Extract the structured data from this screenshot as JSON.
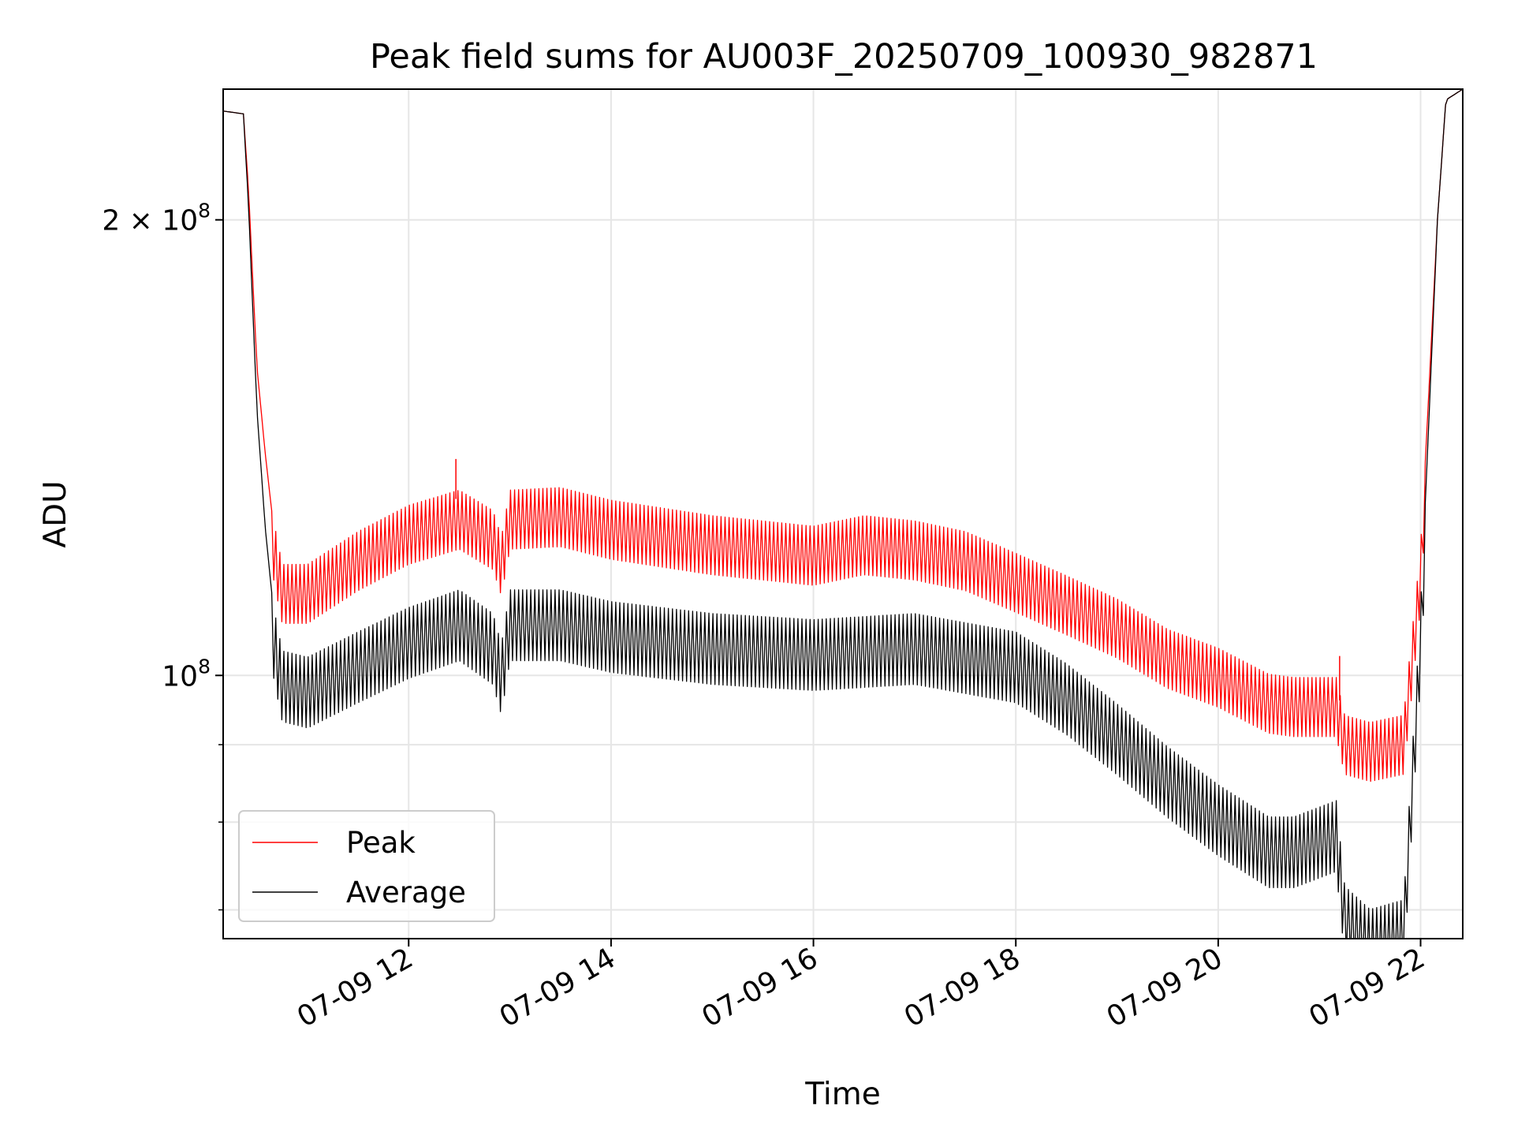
{
  "chart_data": {
    "type": "line",
    "title": "Peak field sums for AU003F_20250709_100930_982871",
    "xlabel": "Time",
    "ylabel": "ADU",
    "x_axis": {
      "type": "datetime",
      "range": [
        "2025-07-09 10:10",
        "2025-07-09 22:25"
      ],
      "ticks": [
        {
          "value": "2025-07-09 12:00",
          "label": "07-09 12"
        },
        {
          "value": "2025-07-09 14:00",
          "label": "07-09 14"
        },
        {
          "value": "2025-07-09 16:00",
          "label": "07-09 16"
        },
        {
          "value": "2025-07-09 18:00",
          "label": "07-09 18"
        },
        {
          "value": "2025-07-09 20:00",
          "label": "07-09 20"
        },
        {
          "value": "2025-07-09 22:00",
          "label": "07-09 22"
        }
      ]
    },
    "y_axis": {
      "scale": "log",
      "range": [
        67000000,
        244000000
      ],
      "major_ticks": [
        {
          "value": 100000000,
          "label_base": "10",
          "label_exp": "8"
        },
        {
          "value": 200000000,
          "label_base": "2 × 10",
          "label_exp": "8"
        }
      ],
      "minor_ticks": [
        70000000,
        80000000,
        90000000
      ]
    },
    "grid": true,
    "legend": {
      "position": "lower-left"
    },
    "series": [
      {
        "name": "Peak",
        "color": "#ff0000",
        "oscillating": true,
        "points": [
          [
            "2025-07-09 10:10",
            236000000
          ],
          [
            "2025-07-09 10:22",
            235000000
          ],
          [
            "2025-07-09 10:25",
            210000000
          ],
          [
            "2025-07-09 10:30",
            160000000
          ],
          [
            "2025-07-09 10:35",
            140000000
          ],
          [
            "2025-07-09 10:40",
            125000000
          ],
          [
            "2025-07-09 10:45",
            117000000
          ],
          [
            "2025-07-09 11:00",
            117000000
          ],
          [
            "2025-07-09 11:30",
            123000000
          ],
          [
            "2025-07-09 12:00",
            128000000
          ],
          [
            "2025-07-09 12:30",
            131000000
          ],
          [
            "2025-07-09 12:50",
            127000000
          ],
          [
            "2025-07-09 12:55",
            122000000
          ],
          [
            "2025-07-09 13:00",
            131000000
          ],
          [
            "2025-07-09 13:30",
            131500000
          ],
          [
            "2025-07-09 14:00",
            129000000
          ],
          [
            "2025-07-09 15:00",
            126000000
          ],
          [
            "2025-07-09 16:00",
            124000000
          ],
          [
            "2025-07-09 16:30",
            126000000
          ],
          [
            "2025-07-09 17:00",
            125000000
          ],
          [
            "2025-07-09 17:30",
            123000000
          ],
          [
            "2025-07-09 18:00",
            119000000
          ],
          [
            "2025-07-09 18:30",
            115000000
          ],
          [
            "2025-07-09 19:00",
            111000000
          ],
          [
            "2025-07-09 19:30",
            106000000
          ],
          [
            "2025-07-09 20:00",
            103000000
          ],
          [
            "2025-07-09 20:30",
            99000000
          ],
          [
            "2025-07-09 20:45",
            98500000
          ],
          [
            "2025-07-09 21:10",
            98500000
          ],
          [
            "2025-07-09 21:15",
            93000000
          ],
          [
            "2025-07-09 21:30",
            92000000
          ],
          [
            "2025-07-09 21:50",
            93000000
          ],
          [
            "2025-07-09 22:00",
            120000000
          ],
          [
            "2025-07-09 22:10",
            200000000
          ],
          [
            "2025-07-09 22:15",
            240000000
          ],
          [
            "2025-07-09 22:25",
            244000000
          ]
        ]
      },
      {
        "name": "Average",
        "color": "#000000",
        "oscillating": true,
        "points": [
          [
            "2025-07-09 10:10",
            236000000
          ],
          [
            "2025-07-09 10:22",
            235000000
          ],
          [
            "2025-07-09 10:25",
            205000000
          ],
          [
            "2025-07-09 10:30",
            150000000
          ],
          [
            "2025-07-09 10:35",
            125000000
          ],
          [
            "2025-07-09 10:40",
            110000000
          ],
          [
            "2025-07-09 10:45",
            103000000
          ],
          [
            "2025-07-09 11:00",
            102000000
          ],
          [
            "2025-07-09 11:30",
            106000000
          ],
          [
            "2025-07-09 12:00",
            110000000
          ],
          [
            "2025-07-09 12:30",
            113000000
          ],
          [
            "2025-07-09 12:50",
            109000000
          ],
          [
            "2025-07-09 12:55",
            104000000
          ],
          [
            "2025-07-09 13:00",
            113000000
          ],
          [
            "2025-07-09 13:30",
            113000000
          ],
          [
            "2025-07-09 14:00",
            111000000
          ],
          [
            "2025-07-09 15:00",
            109000000
          ],
          [
            "2025-07-09 16:00",
            108000000
          ],
          [
            "2025-07-09 17:00",
            109000000
          ],
          [
            "2025-07-09 18:00",
            106000000
          ],
          [
            "2025-07-09 18:30",
            101000000
          ],
          [
            "2025-07-09 19:00",
            95000000
          ],
          [
            "2025-07-09 19:30",
            89000000
          ],
          [
            "2025-07-09 20:00",
            84000000
          ],
          [
            "2025-07-09 20:30",
            80000000
          ],
          [
            "2025-07-09 20:45",
            80000000
          ],
          [
            "2025-07-09 21:10",
            82000000
          ],
          [
            "2025-07-09 21:15",
            72000000
          ],
          [
            "2025-07-09 21:30",
            69500000
          ],
          [
            "2025-07-09 21:50",
            70500000
          ],
          [
            "2025-07-09 22:00",
            110000000
          ],
          [
            "2025-07-09 22:10",
            200000000
          ],
          [
            "2025-07-09 22:15",
            240000000
          ],
          [
            "2025-07-09 22:25",
            244000000
          ]
        ]
      }
    ],
    "annotations": [
      {
        "series": "Peak",
        "x": "2025-07-09 12:28",
        "y": 139000000,
        "note": "spike"
      },
      {
        "series": "Peak",
        "x": "2025-07-09 21:12",
        "y": 103000000,
        "note": "spike"
      }
    ]
  }
}
